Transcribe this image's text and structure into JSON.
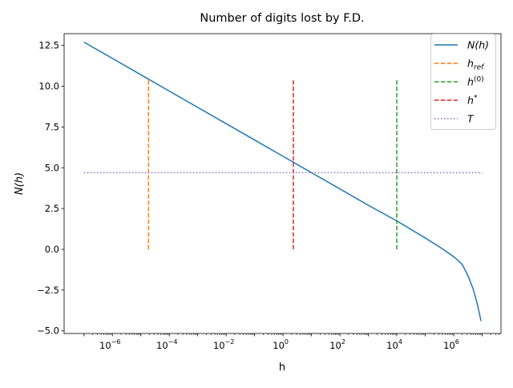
{
  "chart_data": {
    "type": "line",
    "title": "Number of digits lost by F.D.",
    "xlabel": "h",
    "ylabel": "N(h)",
    "xscale": "log",
    "xlim": [
      2e-08,
      46000000.0
    ],
    "ylim": [
      -5.16,
      13.22
    ],
    "grid": false,
    "legend_placement": "top-right",
    "x_ticks": [
      {
        "value": 1e-06,
        "base": "10",
        "exp": "−6"
      },
      {
        "value": 0.0001,
        "base": "10",
        "exp": "−4"
      },
      {
        "value": 0.01,
        "base": "10",
        "exp": "−2"
      },
      {
        "value": 1,
        "base": "10",
        "exp": "0"
      },
      {
        "value": 100.0,
        "base": "10",
        "exp": "2"
      },
      {
        "value": 10000.0,
        "base": "10",
        "exp": "4"
      },
      {
        "value": 1000000.0,
        "base": "10",
        "exp": "6"
      }
    ],
    "y_ticks": [
      -5.0,
      -2.5,
      0.0,
      2.5,
      5.0,
      7.5,
      10.0,
      12.5
    ],
    "y_tick_labels": [
      "−5.0",
      "−2.5",
      "0.0",
      "2.5",
      "5.0",
      "7.5",
      "10.0",
      "12.5"
    ],
    "series": [
      {
        "name": "N(h)",
        "legend": {
          "main": "N(h)",
          "sub": "",
          "sup": ""
        },
        "kind": "curve",
        "color": "#1f77b4",
        "style": "solid",
        "x": [
          1e-07,
          1e-06,
          1e-05,
          0.0001,
          0.001,
          0.01,
          0.1,
          1,
          10,
          100,
          1000.0,
          10000.0,
          100000.0,
          316000.0,
          830000.0,
          1260000.0,
          2000000.0,
          3160000.0,
          4790000.0,
          7080000.0,
          9120000.0
        ],
        "y": [
          12.7,
          11.7,
          10.7,
          9.7,
          8.7,
          7.7,
          6.7,
          5.7,
          4.7,
          3.7,
          2.7,
          1.74,
          0.7,
          0.15,
          -0.35,
          -0.6,
          -0.93,
          -1.6,
          -2.4,
          -3.5,
          -4.4
        ]
      },
      {
        "name": "h_ref",
        "legend": {
          "main": "h",
          "sub": "ref",
          "sup": ""
        },
        "kind": "vline",
        "color": "#ff7f0e",
        "style": "dashed",
        "x": 1.86e-05,
        "y": [
          0,
          10.4
        ]
      },
      {
        "name": "h^(0)",
        "legend": {
          "main": "h",
          "sub": "",
          "sup": "(0)"
        },
        "kind": "vline",
        "color": "#2ca02c",
        "style": "dashed",
        "x": 10000.0,
        "y": [
          0,
          10.4
        ]
      },
      {
        "name": "h^*",
        "legend": {
          "main": "h",
          "sub": "",
          "sup": "*"
        },
        "kind": "vline",
        "color": "#d62728",
        "style": "dashed",
        "x": 2.3,
        "y": [
          0,
          10.4
        ]
      },
      {
        "name": "T",
        "legend": {
          "main": "T",
          "sub": "",
          "sup": ""
        },
        "kind": "hline",
        "color": "#9467bd",
        "style": "dotted",
        "y": 4.7,
        "x": [
          1e-07,
          10000000.0
        ]
      }
    ]
  }
}
